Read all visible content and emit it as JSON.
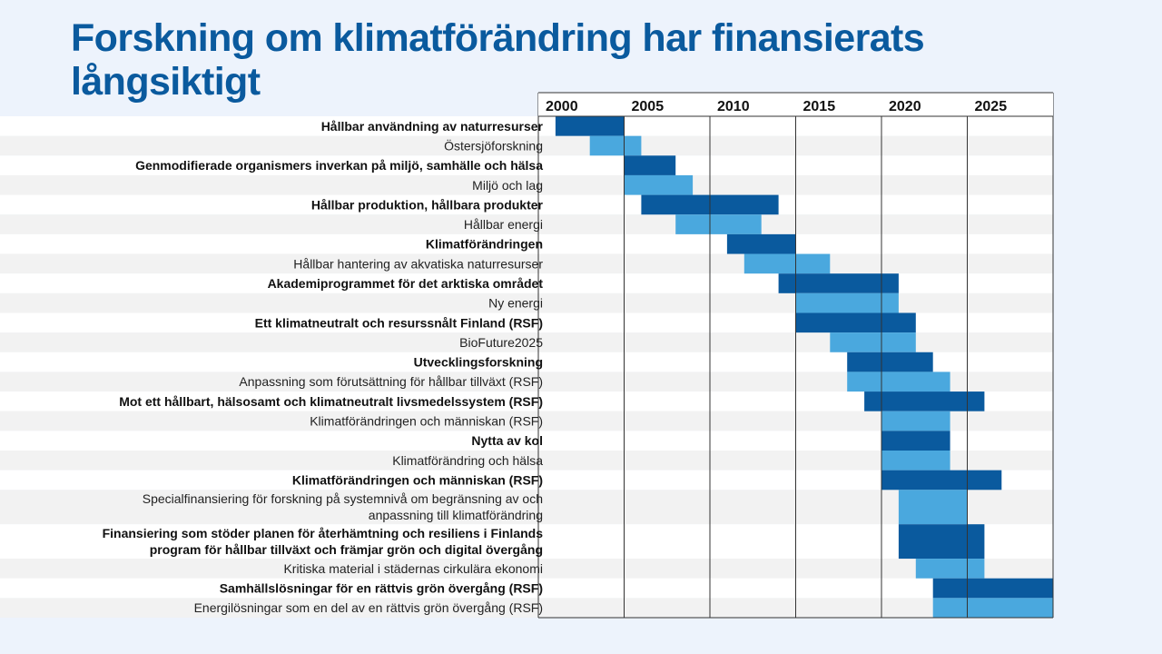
{
  "title": "Forskning om klimatförändring har finansierats långsiktigt",
  "chart_data": {
    "type": "bar",
    "subtype": "gantt",
    "xlim": [
      2000,
      2030
    ],
    "x_ticks": [
      "2000",
      "2005",
      "2010",
      "2015",
      "2020",
      "2025"
    ],
    "colors": {
      "dark": "#0a5a9e",
      "light": "#4aa8de"
    },
    "rows": [
      {
        "lines": [
          "Hållbar användning av naturresurser"
        ],
        "bold": true,
        "start": 2001,
        "end": 2005
      },
      {
        "lines": [
          "Östersjöforskning"
        ],
        "bold": false,
        "start": 2003,
        "end": 2006
      },
      {
        "lines": [
          "Genmodifierade organismers inverkan på miljö, samhälle och hälsa"
        ],
        "bold": true,
        "start": 2005,
        "end": 2008
      },
      {
        "lines": [
          "Miljö och lag"
        ],
        "bold": false,
        "start": 2005,
        "end": 2009
      },
      {
        "lines": [
          "Hållbar produktion, hållbara produkter"
        ],
        "bold": true,
        "start": 2006,
        "end": 2014
      },
      {
        "lines": [
          "Hållbar energi"
        ],
        "bold": false,
        "start": 2008,
        "end": 2013
      },
      {
        "lines": [
          "Klimatförändringen"
        ],
        "bold": true,
        "start": 2011,
        "end": 2015
      },
      {
        "lines": [
          "Hållbar hantering av akvatiska naturresurser"
        ],
        "bold": false,
        "start": 2012,
        "end": 2017
      },
      {
        "lines": [
          "Akademiprogrammet för det arktiska området"
        ],
        "bold": true,
        "start": 2014,
        "end": 2021
      },
      {
        "lines": [
          "Ny energi"
        ],
        "bold": false,
        "start": 2015,
        "end": 2021
      },
      {
        "lines": [
          "Ett klimatneutralt och resurssnålt Finland (RSF)"
        ],
        "bold": true,
        "start": 2015,
        "end": 2022
      },
      {
        "lines": [
          "BioFuture2025"
        ],
        "bold": false,
        "start": 2017,
        "end": 2022
      },
      {
        "lines": [
          "Utvecklingsforskning"
        ],
        "bold": true,
        "start": 2018,
        "end": 2023
      },
      {
        "lines": [
          "Anpassning som förutsättning för hållbar tillväxt (RSF)"
        ],
        "bold": false,
        "start": 2018,
        "end": 2024
      },
      {
        "lines": [
          "Mot ett hållbart, hälsosamt och klimatneutralt livsmedelssystem (RSF)"
        ],
        "bold": true,
        "start": 2019,
        "end": 2026
      },
      {
        "lines": [
          "Klimatförändringen och människan (RSF)"
        ],
        "bold": false,
        "start": 2020,
        "end": 2024
      },
      {
        "lines": [
          "Nytta av kol"
        ],
        "bold": true,
        "start": 2020,
        "end": 2024
      },
      {
        "lines": [
          "Klimatförändring och hälsa"
        ],
        "bold": false,
        "start": 2020,
        "end": 2024
      },
      {
        "lines": [
          "Klimatförändringen och människan (RSF)"
        ],
        "bold": true,
        "start": 2020,
        "end": 2027
      },
      {
        "lines": [
          "Specialfinansiering för forskning på systemnivå om begränsning av och",
          "anpassning till klimatförändring"
        ],
        "bold": false,
        "start": 2021,
        "end": 2025
      },
      {
        "lines": [
          "Finansiering som stöder planen för återhämtning och resiliens i Finlands",
          "program för hållbar tillväxt och främjar grön och digital övergång"
        ],
        "bold": true,
        "start": 2021,
        "end": 2026
      },
      {
        "lines": [
          "Kritiska material i städernas cirkulära ekonomi"
        ],
        "bold": false,
        "start": 2022,
        "end": 2026
      },
      {
        "lines": [
          "Samhällslösningar för en rättvis grön övergång (RSF)"
        ],
        "bold": true,
        "start": 2023,
        "end": 2030
      },
      {
        "lines": [
          "Energilösningar som en del av en rättvis grön övergång (RSF)"
        ],
        "bold": false,
        "start": 2023,
        "end": 2030
      }
    ]
  }
}
